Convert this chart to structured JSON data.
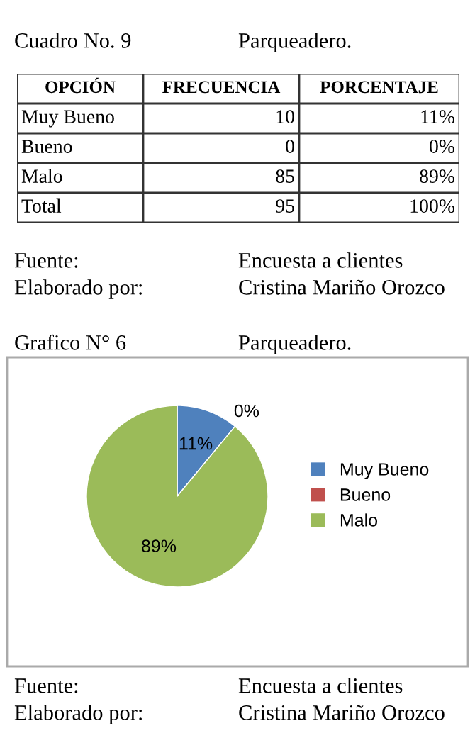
{
  "chart_data": [
    {
      "type": "other",
      "title": "Cuadro No. 9",
      "subtitle": "Parqueadero.",
      "xlabel": "OPCIÓN",
      "categories": [
        "Muy Bueno",
        "Bueno",
        "Malo",
        "Total"
      ],
      "series": [
        {
          "name": "FRECUENCIA",
          "values": [
            10,
            0,
            85,
            95
          ]
        },
        {
          "name": "PORCENTAJE",
          "values": [
            11,
            0,
            89,
            100
          ],
          "value_labels": [
            "11%",
            "0%",
            "89%",
            "100%"
          ]
        }
      ],
      "data_labels": true,
      "annotations": [
        "Fuente:",
        "Encuesta a clientes",
        "Elaborado por:",
        "Cristina Mariño Orozco"
      ]
    },
    {
      "type": "pie",
      "title": "Grafico N° 6",
      "subtitle": "Parqueadero.",
      "categories": [
        "Muy Bueno",
        "Bueno",
        "Malo"
      ],
      "values": [
        11,
        0,
        89
      ],
      "colors": [
        "#4f81bd",
        "#c0504d",
        "#9bbb59"
      ],
      "value_labels": [
        "11%",
        "0%",
        "89%"
      ],
      "legend": "right",
      "annotations": [
        "Fuente:",
        "Encuesta a clientes",
        "Elaborado por:",
        "Cristina Mariño Orozco"
      ]
    }
  ]
}
